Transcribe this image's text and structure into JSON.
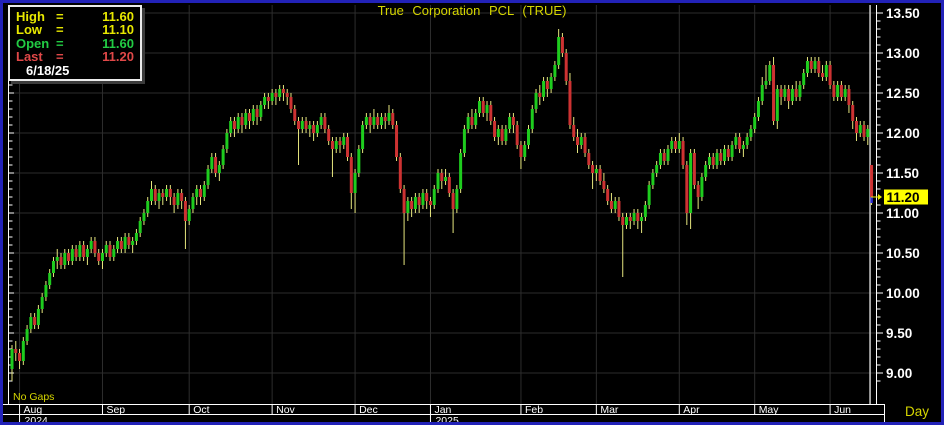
{
  "title": "True Corporation PCL (TRUE)",
  "info_box": {
    "eq": "=",
    "rows": [
      {
        "label": "High",
        "value": "11.60",
        "color": "#e8e800"
      },
      {
        "label": "Low",
        "value": "11.10",
        "color": "#e8e800"
      },
      {
        "label": "Open",
        "value": "11.60",
        "color": "#22cc44"
      },
      {
        "label": "Last",
        "value": "11.20",
        "color": "#e04848"
      }
    ],
    "date": "6/18/25"
  },
  "no_gaps_label": "No Gaps",
  "period_label": "Day",
  "last_price_marker": {
    "value": "11.20"
  },
  "colors": {
    "background": "#000000",
    "border": "#2222b8",
    "grid": "#2d2d2d",
    "up": "#1ecc1e",
    "down": "#cd3232",
    "wick": "#e6e67e",
    "axis": "#ffffff",
    "axis_text": "#ffffff",
    "title_text": "#d6d600",
    "label_yellow": "#e8e800",
    "cursor": "#cfcfcf",
    "last_close_tick": "#2a2ad0",
    "last_price_bg": "#ffff00",
    "last_price_fg": "#000000"
  },
  "chart_data": {
    "type": "candlestick",
    "title": "True Corporation PCL (TRUE)",
    "symbol": "TRUE",
    "timeframe": "Day",
    "y_axis": {
      "min": 9.0,
      "max": 13.5,
      "tick_step": 0.5,
      "minor_tick_step": 0.1,
      "labels": [
        "13.50",
        "13.00",
        "12.50",
        "12.00",
        "11.50",
        "11.00",
        "10.50",
        "10.00",
        "9.50",
        "9.00"
      ]
    },
    "x_axis": {
      "months": [
        {
          "label": "Aug",
          "candle_index": 2
        },
        {
          "label": "Sep",
          "candle_index": 24
        },
        {
          "label": "Oct",
          "candle_index": 47
        },
        {
          "label": "Nov",
          "candle_index": 69
        },
        {
          "label": "Dec",
          "candle_index": 91
        },
        {
          "label": "Jan",
          "candle_index": 111
        },
        {
          "label": "Feb",
          "candle_index": 135
        },
        {
          "label": "Mar",
          "candle_index": 155
        },
        {
          "label": "Apr",
          "candle_index": 177
        },
        {
          "label": "May",
          "candle_index": 197
        },
        {
          "label": "Jun",
          "candle_index": 217
        }
      ],
      "years": [
        {
          "label": "2024",
          "candle_index": 2
        },
        {
          "label": "2025",
          "candle_index": 111
        }
      ]
    },
    "last_bar": {
      "date": "6/18/25",
      "open": 11.6,
      "high": 11.6,
      "low": 11.1,
      "close": 11.2
    },
    "ohlc": [
      [
        9.05,
        9.35,
        8.9,
        9.3
      ],
      [
        9.3,
        9.4,
        9.15,
        9.25
      ],
      [
        9.25,
        9.3,
        9.05,
        9.15
      ],
      [
        9.15,
        9.45,
        9.1,
        9.4
      ],
      [
        9.4,
        9.6,
        9.35,
        9.55
      ],
      [
        9.55,
        9.75,
        9.5,
        9.7
      ],
      [
        9.7,
        9.75,
        9.55,
        9.6
      ],
      [
        9.6,
        9.85,
        9.55,
        9.8
      ],
      [
        9.8,
        10.0,
        9.75,
        9.95
      ],
      [
        9.95,
        10.15,
        9.9,
        10.1
      ],
      [
        10.1,
        10.3,
        10.05,
        10.25
      ],
      [
        10.25,
        10.45,
        10.2,
        10.4
      ],
      [
        10.4,
        10.55,
        10.3,
        10.45
      ],
      [
        10.45,
        10.5,
        10.3,
        10.35
      ],
      [
        10.35,
        10.55,
        10.3,
        10.5
      ],
      [
        10.5,
        10.55,
        10.35,
        10.4
      ],
      [
        10.4,
        10.6,
        10.35,
        10.55
      ],
      [
        10.55,
        10.6,
        10.4,
        10.45
      ],
      [
        10.45,
        10.65,
        10.4,
        10.6
      ],
      [
        10.6,
        10.65,
        10.4,
        10.45
      ],
      [
        10.45,
        10.6,
        10.35,
        10.55
      ],
      [
        10.55,
        10.7,
        10.5,
        10.65
      ],
      [
        10.65,
        10.7,
        10.45,
        10.5
      ],
      [
        10.5,
        10.55,
        10.35,
        10.4
      ],
      [
        10.4,
        10.55,
        10.3,
        10.5
      ],
      [
        10.5,
        10.65,
        10.45,
        10.6
      ],
      [
        10.6,
        10.65,
        10.4,
        10.45
      ],
      [
        10.45,
        10.6,
        10.4,
        10.55
      ],
      [
        10.55,
        10.7,
        10.5,
        10.65
      ],
      [
        10.65,
        10.7,
        10.5,
        10.55
      ],
      [
        10.55,
        10.75,
        10.5,
        10.7
      ],
      [
        10.7,
        10.75,
        10.55,
        10.6
      ],
      [
        10.6,
        10.7,
        10.5,
        10.65
      ],
      [
        10.65,
        10.8,
        10.6,
        10.75
      ],
      [
        10.75,
        10.95,
        10.7,
        10.9
      ],
      [
        10.9,
        11.05,
        10.85,
        11.0
      ],
      [
        11.0,
        11.2,
        10.95,
        11.15
      ],
      [
        11.15,
        11.4,
        11.1,
        11.3
      ],
      [
        11.3,
        11.35,
        11.1,
        11.15
      ],
      [
        11.15,
        11.3,
        11.05,
        11.25
      ],
      [
        11.25,
        11.3,
        11.1,
        11.2
      ],
      [
        11.2,
        11.35,
        11.15,
        11.3
      ],
      [
        11.3,
        11.35,
        11.1,
        11.2
      ],
      [
        11.2,
        11.25,
        11.0,
        11.1
      ],
      [
        11.1,
        11.3,
        11.05,
        11.25
      ],
      [
        11.25,
        11.3,
        11.05,
        11.15
      ],
      [
        11.15,
        11.2,
        10.55,
        10.9
      ],
      [
        10.9,
        11.1,
        10.85,
        11.05
      ],
      [
        11.05,
        11.25,
        11.0,
        11.2
      ],
      [
        11.2,
        11.35,
        11.1,
        11.3
      ],
      [
        11.3,
        11.35,
        11.1,
        11.2
      ],
      [
        11.2,
        11.4,
        11.15,
        11.35
      ],
      [
        11.35,
        11.6,
        11.3,
        11.55
      ],
      [
        11.55,
        11.75,
        11.5,
        11.7
      ],
      [
        11.7,
        11.75,
        11.45,
        11.5
      ],
      [
        11.5,
        11.65,
        11.4,
        11.6
      ],
      [
        11.6,
        11.85,
        11.55,
        11.8
      ],
      [
        11.8,
        12.05,
        11.75,
        12.0
      ],
      [
        12.0,
        12.2,
        11.95,
        12.15
      ],
      [
        12.15,
        12.2,
        11.95,
        12.05
      ],
      [
        12.05,
        12.25,
        12.0,
        12.2
      ],
      [
        12.2,
        12.25,
        12.0,
        12.1
      ],
      [
        12.1,
        12.3,
        12.05,
        12.25
      ],
      [
        12.25,
        12.3,
        12.05,
        12.15
      ],
      [
        12.15,
        12.35,
        12.1,
        12.3
      ],
      [
        12.3,
        12.35,
        12.1,
        12.2
      ],
      [
        12.2,
        12.4,
        12.15,
        12.35
      ],
      [
        12.35,
        12.5,
        12.3,
        12.45
      ],
      [
        12.45,
        12.5,
        12.3,
        12.4
      ],
      [
        12.4,
        12.55,
        12.35,
        12.5
      ],
      [
        12.5,
        12.55,
        12.35,
        12.45
      ],
      [
        12.45,
        12.6,
        12.4,
        12.55
      ],
      [
        12.55,
        12.6,
        12.4,
        12.5
      ],
      [
        12.5,
        12.55,
        12.35,
        12.45
      ],
      [
        12.45,
        12.5,
        12.25,
        12.3
      ],
      [
        12.3,
        12.35,
        12.1,
        12.15
      ],
      [
        12.15,
        12.2,
        11.6,
        12.05
      ],
      [
        12.05,
        12.2,
        12.0,
        12.15
      ],
      [
        12.15,
        12.2,
        12.0,
        12.05
      ],
      [
        12.05,
        12.15,
        11.95,
        12.1
      ],
      [
        12.1,
        12.15,
        11.9,
        12.0
      ],
      [
        12.0,
        12.15,
        11.95,
        12.1
      ],
      [
        12.1,
        12.25,
        12.05,
        12.2
      ],
      [
        12.2,
        12.25,
        12.0,
        12.05
      ],
      [
        12.05,
        12.1,
        11.85,
        11.9
      ],
      [
        11.9,
        11.95,
        11.45,
        11.8
      ],
      [
        11.8,
        11.95,
        11.75,
        11.9
      ],
      [
        11.9,
        11.95,
        11.75,
        11.85
      ],
      [
        11.85,
        12.0,
        11.8,
        11.95
      ],
      [
        11.95,
        12.0,
        11.65,
        11.7
      ],
      [
        11.7,
        11.75,
        11.05,
        11.25
      ],
      [
        11.25,
        11.55,
        11.0,
        11.5
      ],
      [
        11.5,
        11.85,
        11.45,
        11.8
      ],
      [
        11.8,
        12.15,
        11.75,
        12.1
      ],
      [
        12.1,
        12.25,
        12.05,
        12.2
      ],
      [
        12.2,
        12.25,
        12.0,
        12.1
      ],
      [
        12.1,
        12.3,
        12.05,
        12.2
      ],
      [
        12.2,
        12.25,
        12.05,
        12.1
      ],
      [
        12.1,
        12.25,
        12.05,
        12.2
      ],
      [
        12.2,
        12.25,
        12.05,
        12.15
      ],
      [
        12.15,
        12.35,
        12.1,
        12.25
      ],
      [
        12.25,
        12.3,
        12.05,
        12.1
      ],
      [
        12.1,
        12.15,
        11.65,
        11.7
      ],
      [
        11.7,
        11.75,
        11.25,
        11.3
      ],
      [
        11.3,
        11.35,
        10.35,
        11.0
      ],
      [
        11.0,
        11.2,
        10.9,
        11.15
      ],
      [
        11.15,
        11.2,
        10.95,
        11.05
      ],
      [
        11.05,
        11.25,
        11.0,
        11.2
      ],
      [
        11.2,
        11.25,
        11.0,
        11.1
      ],
      [
        11.1,
        11.3,
        11.05,
        11.25
      ],
      [
        11.25,
        11.3,
        11.05,
        11.15
      ],
      [
        11.15,
        11.2,
        10.95,
        11.1
      ],
      [
        11.1,
        11.35,
        11.05,
        11.3
      ],
      [
        11.3,
        11.55,
        11.25,
        11.5
      ],
      [
        11.5,
        11.55,
        11.3,
        11.4
      ],
      [
        11.4,
        11.55,
        11.35,
        11.45
      ],
      [
        11.45,
        11.5,
        11.2,
        11.25
      ],
      [
        11.25,
        11.3,
        10.75,
        11.05
      ],
      [
        11.05,
        11.35,
        11.0,
        11.3
      ],
      [
        11.3,
        11.8,
        11.25,
        11.75
      ],
      [
        11.75,
        12.1,
        11.7,
        12.05
      ],
      [
        12.05,
        12.25,
        12.0,
        12.2
      ],
      [
        12.2,
        12.3,
        12.05,
        12.1
      ],
      [
        12.1,
        12.3,
        12.05,
        12.25
      ],
      [
        12.25,
        12.45,
        12.2,
        12.4
      ],
      [
        12.4,
        12.45,
        12.2,
        12.25
      ],
      [
        12.25,
        12.4,
        12.15,
        12.35
      ],
      [
        12.35,
        12.4,
        12.1,
        12.15
      ],
      [
        12.15,
        12.2,
        11.9,
        11.95
      ],
      [
        11.95,
        12.1,
        11.85,
        12.05
      ],
      [
        12.05,
        12.1,
        11.85,
        11.9
      ],
      [
        11.9,
        12.1,
        11.85,
        12.05
      ],
      [
        12.05,
        12.25,
        12.0,
        12.2
      ],
      [
        12.2,
        12.25,
        12.0,
        12.1
      ],
      [
        12.1,
        12.15,
        11.8,
        11.85
      ],
      [
        11.85,
        11.9,
        11.55,
        11.7
      ],
      [
        11.7,
        11.9,
        11.65,
        11.85
      ],
      [
        11.85,
        12.1,
        11.8,
        12.05
      ],
      [
        12.05,
        12.35,
        12.0,
        12.3
      ],
      [
        12.3,
        12.55,
        12.25,
        12.5
      ],
      [
        12.5,
        12.6,
        12.35,
        12.45
      ],
      [
        12.45,
        12.7,
        12.4,
        12.65
      ],
      [
        12.65,
        12.7,
        12.45,
        12.55
      ],
      [
        12.55,
        12.75,
        12.5,
        12.7
      ],
      [
        12.7,
        12.9,
        12.65,
        12.85
      ],
      [
        12.85,
        13.3,
        12.8,
        13.2
      ],
      [
        13.2,
        13.25,
        12.95,
        13.0
      ],
      [
        13.0,
        13.05,
        12.6,
        12.65
      ],
      [
        12.65,
        12.75,
        12.05,
        12.1
      ],
      [
        12.1,
        12.2,
        11.9,
        11.95
      ],
      [
        11.95,
        12.05,
        11.75,
        11.85
      ],
      [
        11.85,
        12.0,
        11.8,
        11.95
      ],
      [
        11.95,
        12.0,
        11.7,
        11.75
      ],
      [
        11.75,
        11.8,
        11.55,
        11.6
      ],
      [
        11.6,
        11.65,
        11.3,
        11.5
      ],
      [
        11.5,
        11.6,
        11.4,
        11.55
      ],
      [
        11.55,
        11.6,
        11.35,
        11.4
      ],
      [
        11.4,
        11.5,
        11.25,
        11.3
      ],
      [
        11.3,
        11.35,
        11.1,
        11.15
      ],
      [
        11.15,
        11.25,
        11.0,
        11.05
      ],
      [
        11.05,
        11.2,
        11.0,
        11.15
      ],
      [
        11.15,
        11.2,
        10.9,
        10.95
      ],
      [
        10.95,
        11.0,
        10.2,
        10.85
      ],
      [
        10.85,
        11.0,
        10.8,
        10.95
      ],
      [
        10.95,
        11.0,
        10.8,
        10.9
      ],
      [
        10.9,
        11.05,
        10.85,
        11.0
      ],
      [
        11.0,
        11.05,
        10.8,
        10.9
      ],
      [
        10.9,
        11.0,
        10.75,
        10.95
      ],
      [
        10.95,
        11.15,
        10.9,
        11.1
      ],
      [
        11.1,
        11.4,
        11.05,
        11.35
      ],
      [
        11.35,
        11.55,
        11.3,
        11.5
      ],
      [
        11.5,
        11.65,
        11.45,
        11.6
      ],
      [
        11.6,
        11.8,
        11.55,
        11.75
      ],
      [
        11.75,
        11.8,
        11.6,
        11.65
      ],
      [
        11.65,
        11.85,
        11.6,
        11.8
      ],
      [
        11.8,
        11.95,
        11.75,
        11.9
      ],
      [
        11.9,
        11.95,
        11.75,
        11.8
      ],
      [
        11.8,
        12.0,
        11.75,
        11.9
      ],
      [
        11.9,
        11.95,
        11.55,
        11.6
      ],
      [
        11.6,
        11.65,
        10.85,
        11.0
      ],
      [
        11.0,
        11.8,
        10.8,
        11.75
      ],
      [
        11.75,
        11.8,
        11.3,
        11.35
      ],
      [
        11.35,
        11.4,
        11.05,
        11.2
      ],
      [
        11.2,
        11.5,
        11.15,
        11.45
      ],
      [
        11.45,
        11.65,
        11.4,
        11.6
      ],
      [
        11.6,
        11.75,
        11.55,
        11.7
      ],
      [
        11.7,
        11.75,
        11.55,
        11.6
      ],
      [
        11.6,
        11.8,
        11.55,
        11.75
      ],
      [
        11.75,
        11.8,
        11.6,
        11.65
      ],
      [
        11.65,
        11.85,
        11.6,
        11.8
      ],
      [
        11.8,
        11.85,
        11.65,
        11.7
      ],
      [
        11.7,
        11.9,
        11.65,
        11.85
      ],
      [
        11.85,
        12.0,
        11.8,
        11.95
      ],
      [
        11.95,
        12.0,
        11.75,
        11.8
      ],
      [
        11.8,
        11.9,
        11.7,
        11.85
      ],
      [
        11.85,
        12.0,
        11.8,
        11.95
      ],
      [
        11.95,
        12.1,
        11.9,
        12.05
      ],
      [
        12.05,
        12.25,
        12.0,
        12.2
      ],
      [
        12.2,
        12.45,
        12.15,
        12.4
      ],
      [
        12.4,
        12.7,
        12.35,
        12.6
      ],
      [
        12.6,
        12.85,
        12.55,
        12.65
      ],
      [
        12.65,
        12.9,
        12.6,
        12.85
      ],
      [
        12.85,
        12.95,
        12.1,
        12.15
      ],
      [
        12.15,
        12.6,
        12.05,
        12.55
      ],
      [
        12.55,
        12.6,
        12.35,
        12.45
      ],
      [
        12.45,
        12.6,
        12.4,
        12.55
      ],
      [
        12.55,
        12.6,
        12.3,
        12.4
      ],
      [
        12.4,
        12.6,
        12.35,
        12.55
      ],
      [
        12.55,
        12.65,
        12.4,
        12.45
      ],
      [
        12.45,
        12.65,
        12.4,
        12.6
      ],
      [
        12.6,
        12.8,
        12.55,
        12.75
      ],
      [
        12.75,
        12.95,
        12.7,
        12.9
      ],
      [
        12.9,
        12.95,
        12.75,
        12.8
      ],
      [
        12.8,
        12.95,
        12.75,
        12.9
      ],
      [
        12.9,
        12.95,
        12.7,
        12.75
      ],
      [
        12.75,
        12.85,
        12.65,
        12.7
      ],
      [
        12.7,
        12.9,
        12.65,
        12.85
      ],
      [
        12.85,
        12.9,
        12.55,
        12.6
      ],
      [
        12.6,
        12.65,
        12.4,
        12.45
      ],
      [
        12.45,
        12.65,
        12.4,
        12.6
      ],
      [
        12.6,
        12.65,
        12.4,
        12.45
      ],
      [
        12.45,
        12.6,
        12.4,
        12.55
      ],
      [
        12.55,
        12.6,
        12.25,
        12.35
      ],
      [
        12.35,
        12.4,
        12.05,
        12.15
      ],
      [
        12.15,
        12.2,
        11.9,
        12.0
      ],
      [
        12.0,
        12.15,
        11.95,
        12.1
      ],
      [
        12.1,
        12.15,
        11.9,
        11.95
      ],
      [
        11.95,
        12.1,
        11.85,
        12.05
      ],
      [
        11.6,
        11.6,
        11.1,
        11.2
      ]
    ]
  }
}
